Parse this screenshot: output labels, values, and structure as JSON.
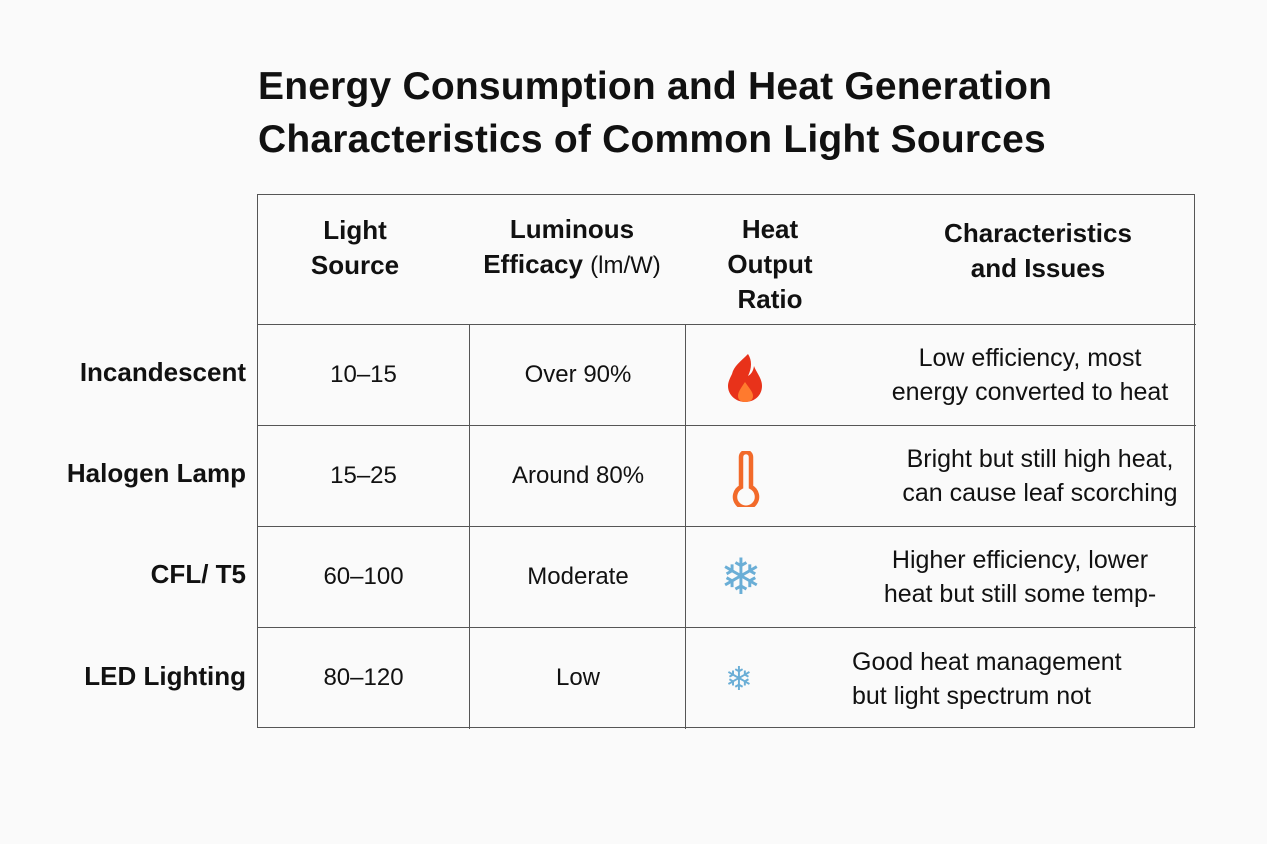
{
  "title": [
    "Energy Consumption and Heat Generation",
    "Characteristics of Common Light Sources"
  ],
  "headers": {
    "light_source": [
      "Light",
      "Source"
    ],
    "luminous_efficacy": [
      "Luminous",
      "Efficacy",
      "(lm/W)"
    ],
    "heat_output": [
      "Heat",
      "Output",
      "Ratio"
    ],
    "characteristics": [
      "Characteristics",
      "and Issues"
    ]
  },
  "rows": [
    {
      "label": "Incandescent",
      "efficacy": "10–15",
      "heat": "Over 90%",
      "icon": "fire-icon",
      "icon_color": "#e8321a",
      "desc": [
        "Low efficiency, most",
        "energy converted to heat"
      ]
    },
    {
      "label": "Halogen Lamp",
      "efficacy": "15–25",
      "heat": "Around 80%",
      "icon": "thermometer-icon",
      "icon_color": "#f26a2a",
      "desc": [
        "Bright but still high heat,",
        "can cause leaf scorching"
      ]
    },
    {
      "label": "CFL/ T5",
      "efficacy": "60–100",
      "heat": "Moderate",
      "icon": "snowflake-icon",
      "icon_color": "#6aaed6",
      "desc": [
        "Higher efficiency, lower",
        "heat but still some temp-"
      ]
    },
    {
      "label": "LED Lighting",
      "efficacy": "80–120",
      "heat": "Low",
      "icon": "snowflake-icon",
      "icon_color": "#6aaed6",
      "desc": [
        "Good heat management",
        "but light spectrum not"
      ]
    }
  ]
}
